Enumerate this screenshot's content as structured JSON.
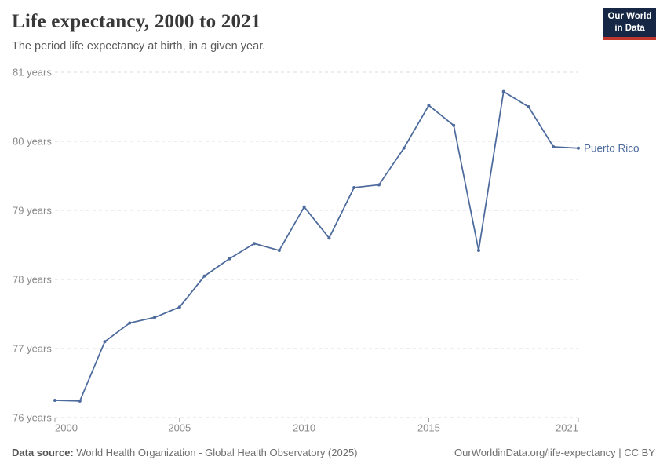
{
  "header": {
    "title": "Life expectancy, 2000 to 2021",
    "subtitle": "The period life expectancy at birth, in a given year.",
    "logo": {
      "line1": "Our World",
      "line2": "in Data"
    }
  },
  "chart_data": {
    "type": "line",
    "title": "Life expectancy, 2000 to 2021",
    "xlabel": "",
    "ylabel": "",
    "x": [
      2000,
      2001,
      2002,
      2003,
      2004,
      2005,
      2006,
      2007,
      2008,
      2009,
      2010,
      2011,
      2012,
      2013,
      2014,
      2015,
      2016,
      2017,
      2018,
      2019,
      2020,
      2021
    ],
    "series": [
      {
        "name": "Puerto Rico",
        "values": [
          76.25,
          76.24,
          77.1,
          77.37,
          77.45,
          77.6,
          78.05,
          78.3,
          78.52,
          78.42,
          79.05,
          78.6,
          79.33,
          79.37,
          79.9,
          80.52,
          80.23,
          78.42,
          80.72,
          80.5,
          79.92,
          79.9
        ]
      }
    ],
    "xlim": [
      2000,
      2021
    ],
    "ylim": [
      76,
      81
    ],
    "grid": "horizontal-dashed",
    "legend_position": "end-of-line-label",
    "end_label": "Puerto Rico",
    "yticks": [
      {
        "value": 76,
        "label": "76 years"
      },
      {
        "value": 77,
        "label": "77 years"
      },
      {
        "value": 78,
        "label": "78 years"
      },
      {
        "value": 79,
        "label": "79 years"
      },
      {
        "value": 80,
        "label": "80 years"
      },
      {
        "value": 81,
        "label": "81 years"
      }
    ],
    "xticks": [
      {
        "value": 2000,
        "label": "2000",
        "align": "start"
      },
      {
        "value": 2005,
        "label": "2005",
        "align": "middle"
      },
      {
        "value": 2010,
        "label": "2010",
        "align": "middle"
      },
      {
        "value": 2015,
        "label": "2015",
        "align": "middle"
      },
      {
        "value": 2021,
        "label": "2021",
        "align": "end"
      }
    ]
  },
  "colors": {
    "line": "#4C6A9C",
    "end_label": "#4C6A9C",
    "gridline": "#dcdcdc",
    "tick_mark": "#999999",
    "tick_text": "#8a8a8a",
    "logo_bg": "#152744",
    "logo_accent": "#c0362c"
  },
  "footer": {
    "source_label": "Data source:",
    "source_text": " World Health Organization - Global Health Observatory (2025)",
    "right_text": "OurWorldinData.org/life-expectancy | CC BY"
  }
}
